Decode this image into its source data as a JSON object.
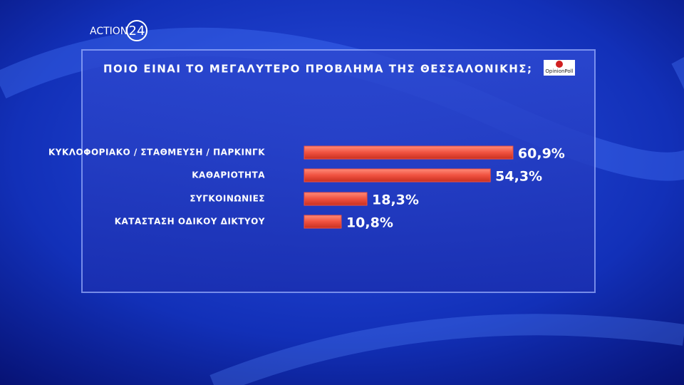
{
  "branding": {
    "channel": "ACTION",
    "channel_number": "24",
    "pollster": "OpinionPoll"
  },
  "chart_data": {
    "type": "bar",
    "orientation": "horizontal",
    "title": "ΠΟΙΟ ΕΙΝΑΙ ΤΟ ΜΕΓΑΛΥΤΕΡΟ ΠΡΟΒΛΗΜΑ ΤΗΣ ΘΕΣΣΑΛΟΝΙΚΗΣ;",
    "categories": [
      "ΚΥΚΛΟΦΟΡΙΑΚΟ / ΣΤΑΘΜΕΥΣΗ / ΠΑΡΚΙΝΓΚ",
      "ΚΑΘΑΡΙΟΤΗΤΑ",
      "ΣΥΓΚΟΙΝΩΝΙΕΣ",
      "ΚΑΤΑΣΤΑΣΗ ΟΔΙΚΟΥ ΔΙΚΤΥΟΥ"
    ],
    "values": [
      60.9,
      54.3,
      18.3,
      10.8
    ],
    "value_labels": [
      "60,9%",
      "54,3%",
      "18,3%",
      "10,8%"
    ],
    "color": "#f0513f"
  }
}
